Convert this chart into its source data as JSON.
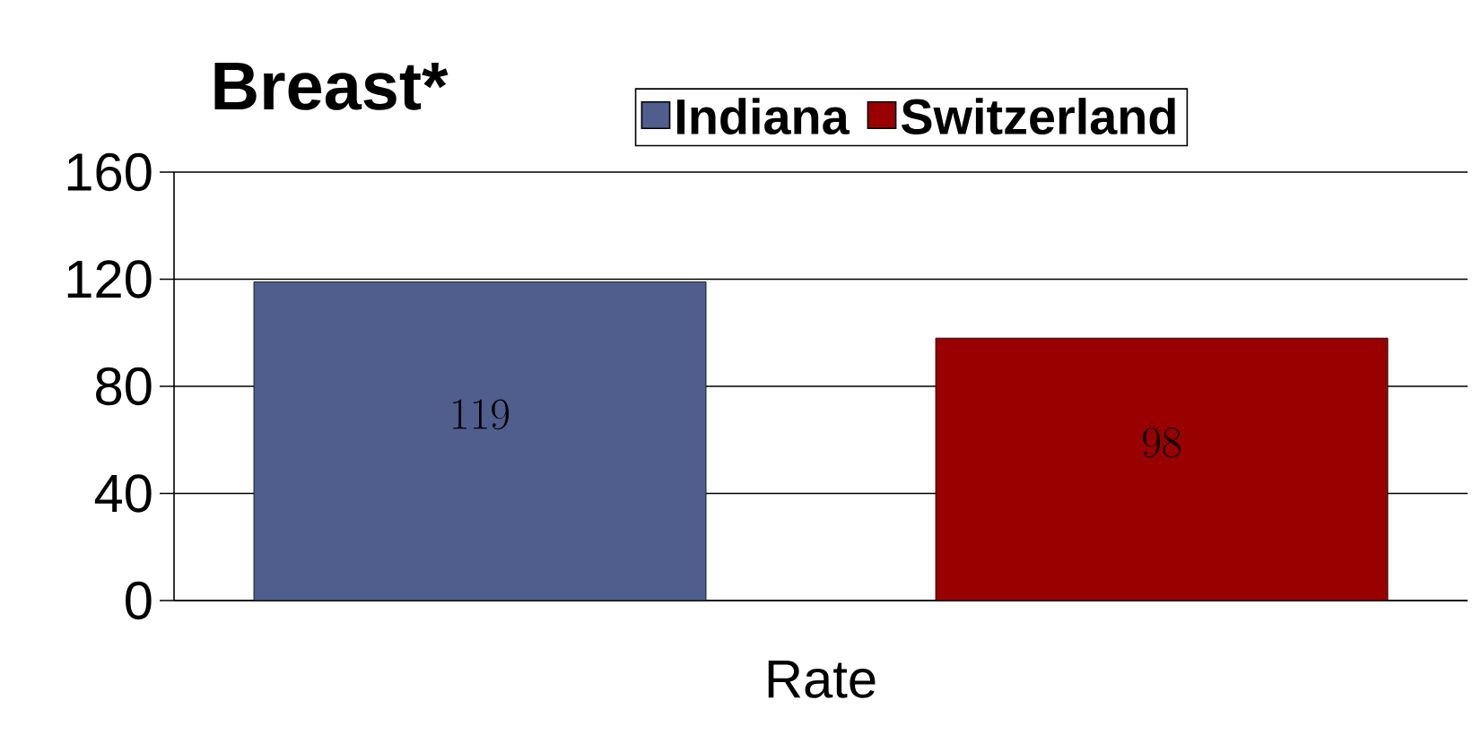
{
  "chart_data": {
    "type": "bar",
    "title": "Breast*",
    "categories": [
      "Rate"
    ],
    "series": [
      {
        "name": "Indiana",
        "color": "#4f5e8c",
        "values": [
          119
        ]
      },
      {
        "name": "Switzerland",
        "color": "#990000",
        "values": [
          98
        ]
      }
    ],
    "ylim": [
      0,
      160
    ],
    "yticks": [
      0,
      40,
      80,
      120,
      160
    ],
    "grid": "y",
    "legend": "top",
    "data_labels": true
  }
}
